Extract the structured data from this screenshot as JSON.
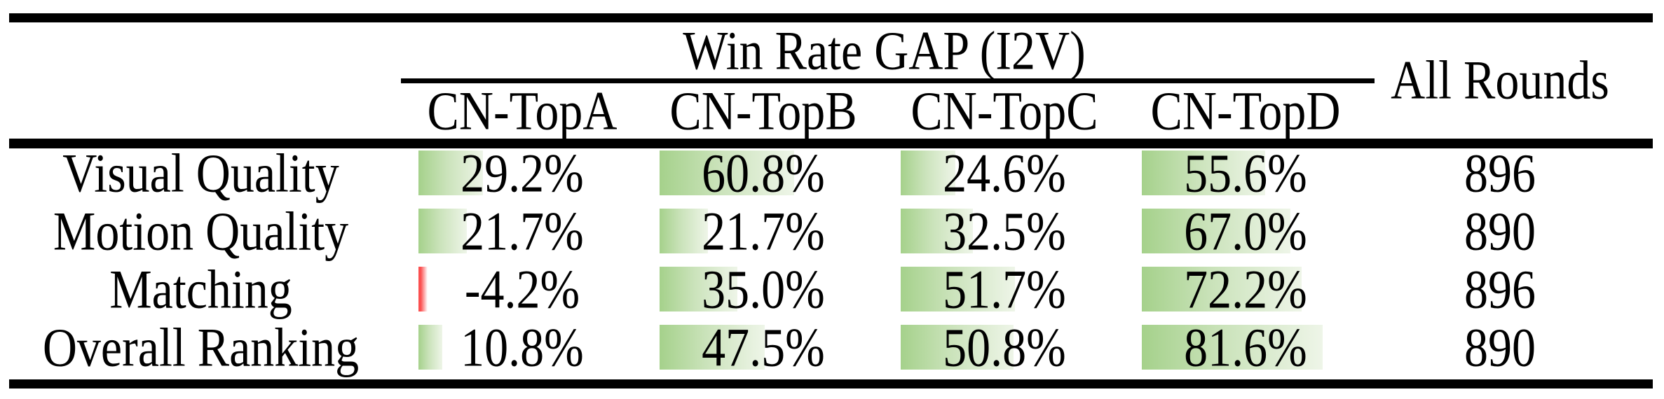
{
  "header": {
    "span_label": "Win Rate GAP (I2V)",
    "all_rounds_label": "All Rounds",
    "columns": [
      "CN-TopA",
      "CN-TopB",
      "CN-TopC",
      "CN-TopD"
    ]
  },
  "rows": [
    {
      "label": "Visual Quality",
      "cells": [
        {
          "text": "29.2%",
          "value": 29.2
        },
        {
          "text": "60.8%",
          "value": 60.8
        },
        {
          "text": "24.6%",
          "value": 24.6
        },
        {
          "text": "55.6%",
          "value": 55.6
        }
      ],
      "all_rounds": "896"
    },
    {
      "label": "Motion Quality",
      "cells": [
        {
          "text": "21.7%",
          "value": 21.7
        },
        {
          "text": "21.7%",
          "value": 21.7
        },
        {
          "text": "32.5%",
          "value": 32.5
        },
        {
          "text": "67.0%",
          "value": 67.0
        }
      ],
      "all_rounds": "890"
    },
    {
      "label": "Matching",
      "cells": [
        {
          "text": "-4.2%",
          "value": -4.2
        },
        {
          "text": "35.0%",
          "value": 35.0
        },
        {
          "text": "51.7%",
          "value": 51.7
        },
        {
          "text": "72.2%",
          "value": 72.2
        }
      ],
      "all_rounds": "896"
    },
    {
      "label": "Overall Ranking",
      "cells": [
        {
          "text": "10.8%",
          "value": 10.8
        },
        {
          "text": "47.5%",
          "value": 47.5
        },
        {
          "text": "50.8%",
          "value": 50.8
        },
        {
          "text": "81.6%",
          "value": 81.6
        }
      ],
      "all_rounds": "890"
    }
  ],
  "colors": {
    "bar_positive_start": "#a5d18b",
    "bar_positive_mid": "#cbe3bb",
    "bar_positive_end": "#eef5e8",
    "bar_negative_start": "#fb4f4f",
    "bar_negative_end": "#ffffff",
    "rule": "#000000"
  },
  "chart_data": {
    "type": "table",
    "title": "Win Rate GAP (I2V)",
    "columns": [
      "",
      "CN-TopA",
      "CN-TopB",
      "CN-TopC",
      "CN-TopD",
      "All Rounds"
    ],
    "rows": [
      [
        "Visual Quality",
        "29.2%",
        "60.8%",
        "24.6%",
        "55.6%",
        "896"
      ],
      [
        "Motion Quality",
        "21.7%",
        "21.7%",
        "32.5%",
        "67.0%",
        "890"
      ],
      [
        "Matching",
        "-4.2%",
        "35.0%",
        "51.7%",
        "72.2%",
        "896"
      ],
      [
        "Overall Ranking",
        "10.8%",
        "47.5%",
        "50.8%",
        "81.6%",
        "890"
      ]
    ],
    "bar_values": [
      [
        29.2,
        60.8,
        24.6,
        55.6
      ],
      [
        21.7,
        21.7,
        32.5,
        67.0
      ],
      [
        -4.2,
        35.0,
        51.7,
        72.2
      ],
      [
        10.8,
        47.5,
        50.8,
        81.6
      ]
    ],
    "bar_scale_percent_range": [
      0,
      100
    ],
    "notes": "Green gradient data bars proportional to positive percentages; thin red bar for negative value."
  }
}
